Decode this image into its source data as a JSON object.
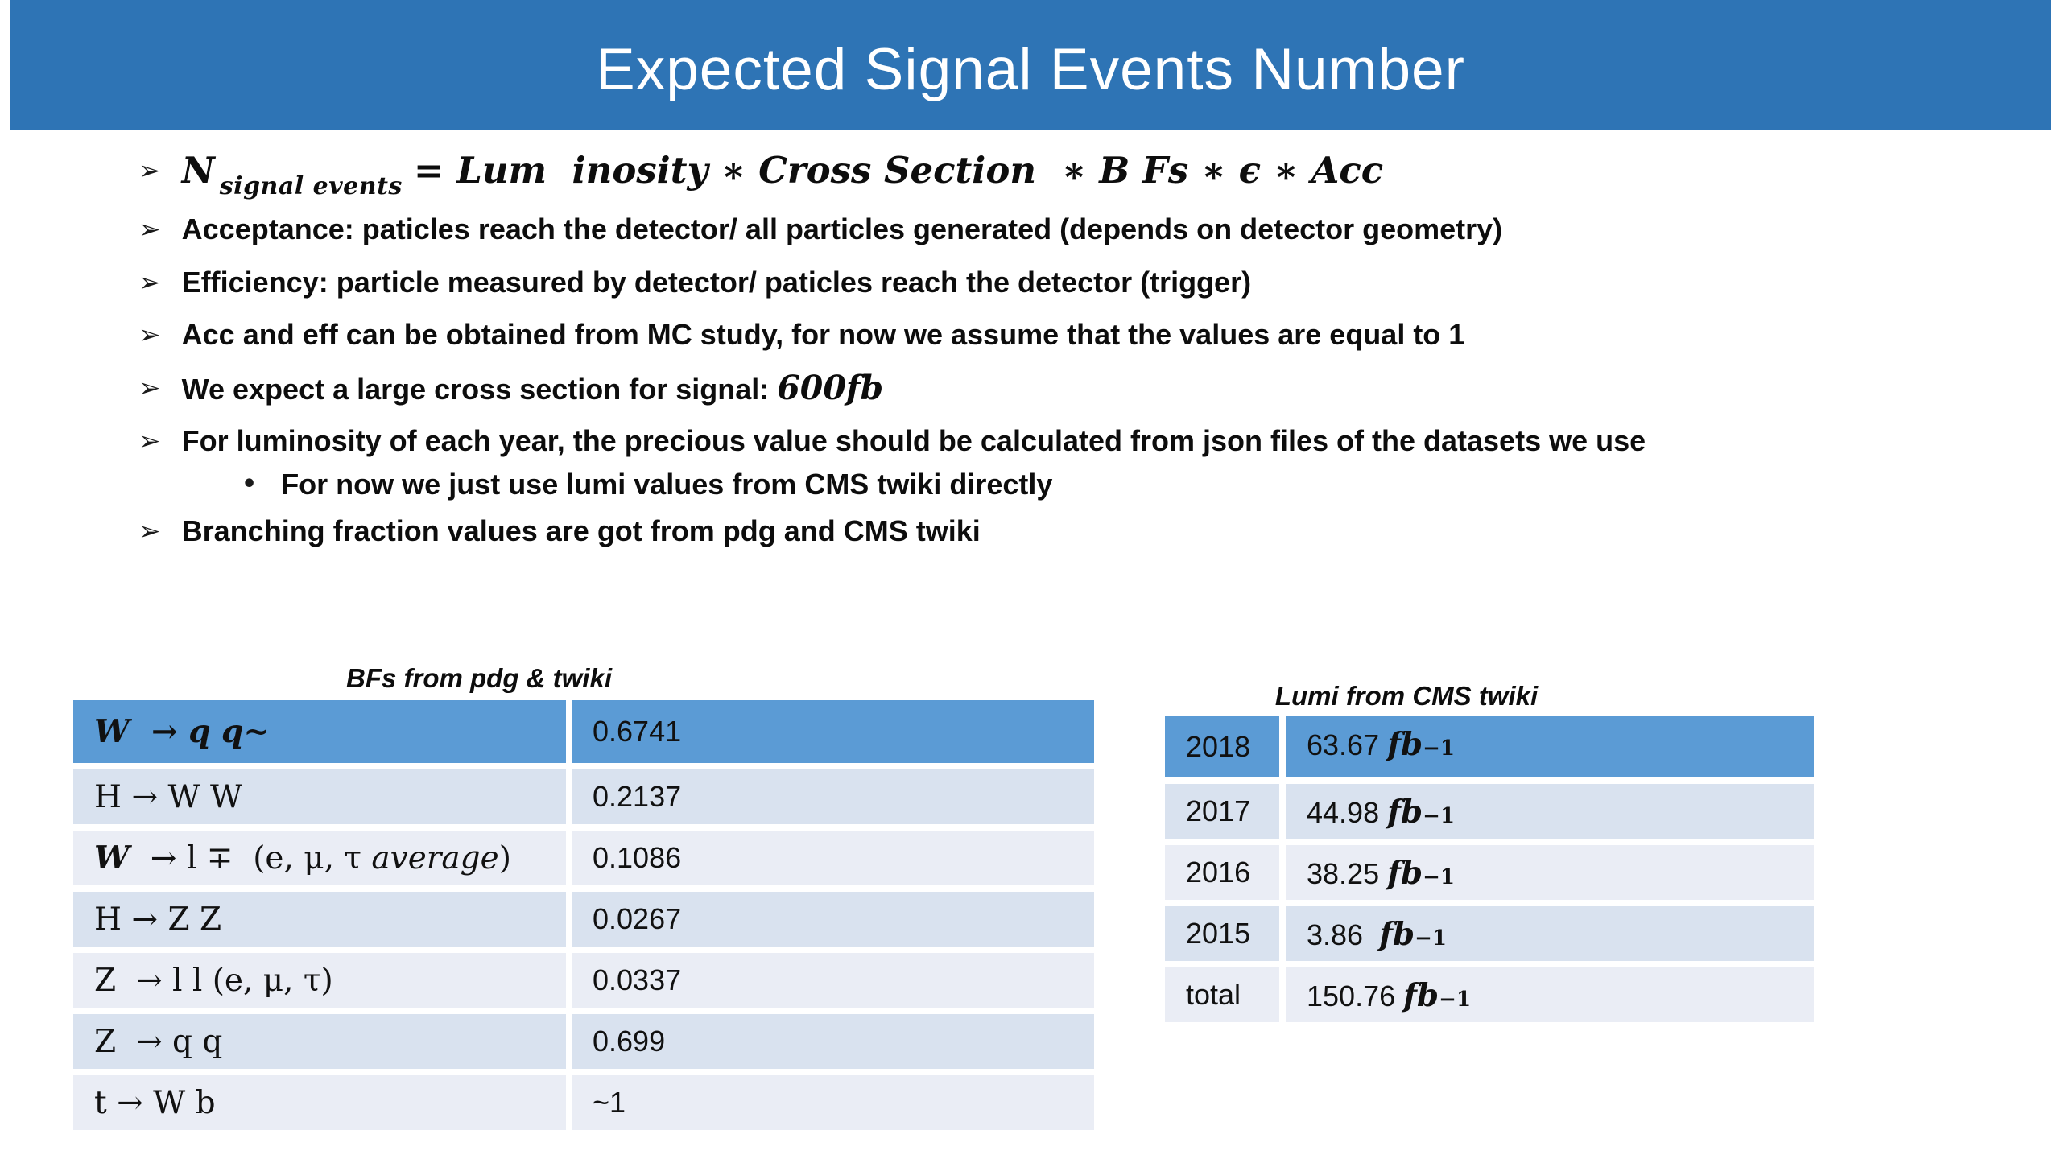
{
  "title": "Expected Signal Events Number",
  "colors": {
    "banner": "#2E74B5",
    "title_text": "#FFFFFF",
    "table_header": "#5B9BD5",
    "band_dark": "#D9E2EF",
    "band_light": "#EAEDF5"
  },
  "bullets": [
    {
      "level": 1,
      "marker": "➢",
      "formula": true,
      "segments": [
        {
          "t": "N",
          "s": ""
        },
        {
          "t": "signal events",
          "s": "sub"
        },
        {
          "t": "= Lum  inosity ∗ Cross Section  ∗ B Fs ∗ ϵ ∗ Acc",
          "s": ""
        }
      ]
    },
    {
      "level": 1,
      "marker": "➢",
      "segments": [
        {
          "t": "Acceptance: paticles reach the detector/ all particles generated (depends on detector geometry)",
          "s": ""
        }
      ]
    },
    {
      "level": 1,
      "marker": "➢",
      "segments": [
        {
          "t": "Efficiency: particle measured by detector/ paticles reach the detector (trigger)",
          "s": ""
        }
      ]
    },
    {
      "level": 1,
      "marker": "➢",
      "segments": [
        {
          "t": "Acc and eff can be obtained from MC study, for now we assume that the values are equal to 1",
          "s": ""
        }
      ]
    },
    {
      "level": 1,
      "marker": "➢",
      "segments": [
        {
          "t": "We expect a large cross section for signal: ",
          "s": ""
        },
        {
          "t": "600fb",
          "s": "math"
        }
      ]
    },
    {
      "level": 1,
      "marker": "➢",
      "segments": [
        {
          "t": "For luminosity of each year, the precious value should be calculated from json files of the datasets we use",
          "s": ""
        }
      ]
    },
    {
      "level": 2,
      "marker": "•",
      "segments": [
        {
          "t": "For now we just use lumi values from CMS twiki directly",
          "s": ""
        }
      ]
    },
    {
      "level": 1,
      "marker": "➢",
      "segments": [
        {
          "t": "Branching fraction values are got from pdg and CMS twiki",
          "s": ""
        }
      ]
    }
  ],
  "bf_table": {
    "caption": "BFs from pdg & twiki",
    "rows": [
      {
        "header": true,
        "decay": [
          {
            "t": "W  → q q~",
            "s": "bi"
          }
        ],
        "value": "0.6741"
      },
      {
        "header": false,
        "decay": [
          {
            "t": "H → W W",
            "s": ""
          }
        ],
        "value": "0.2137"
      },
      {
        "header": false,
        "decay": [
          {
            "t": "W ",
            "s": "bi"
          },
          {
            "t": " → l ∓  (e, μ, τ ",
            "s": ""
          },
          {
            "t": "average",
            "s": "i"
          },
          {
            "t": ")",
            "s": ""
          }
        ],
        "value": "0.1086"
      },
      {
        "header": false,
        "decay": [
          {
            "t": "H → Z Z",
            "s": ""
          }
        ],
        "value": "0.0267"
      },
      {
        "header": false,
        "decay": [
          {
            "t": "Z  → l l (e, μ, τ)",
            "s": ""
          }
        ],
        "value": "0.0337"
      },
      {
        "header": false,
        "decay": [
          {
            "t": "Z  → q q",
            "s": ""
          }
        ],
        "value": "0.699"
      },
      {
        "header": false,
        "decay": [
          {
            "t": "t → W b",
            "s": ""
          }
        ],
        "value": "~1"
      }
    ]
  },
  "lumi_table": {
    "caption": "Lumi from CMS twiki",
    "rows": [
      {
        "header": true,
        "year": "2018",
        "value": "63.67",
        "unit": "fb",
        "exp": "−1"
      },
      {
        "header": false,
        "year": "2017",
        "value": "44.98",
        "unit": "fb",
        "exp": "−1"
      },
      {
        "header": false,
        "year": "2016",
        "value": "38.25",
        "unit": "fb",
        "exp": "−1"
      },
      {
        "header": false,
        "year": "2015",
        "value": "3.86 ",
        "unit": "fb",
        "exp": "−1"
      },
      {
        "header": false,
        "year": "total",
        "value": "150.76",
        "unit": "fb",
        "exp": "−1"
      }
    ]
  }
}
